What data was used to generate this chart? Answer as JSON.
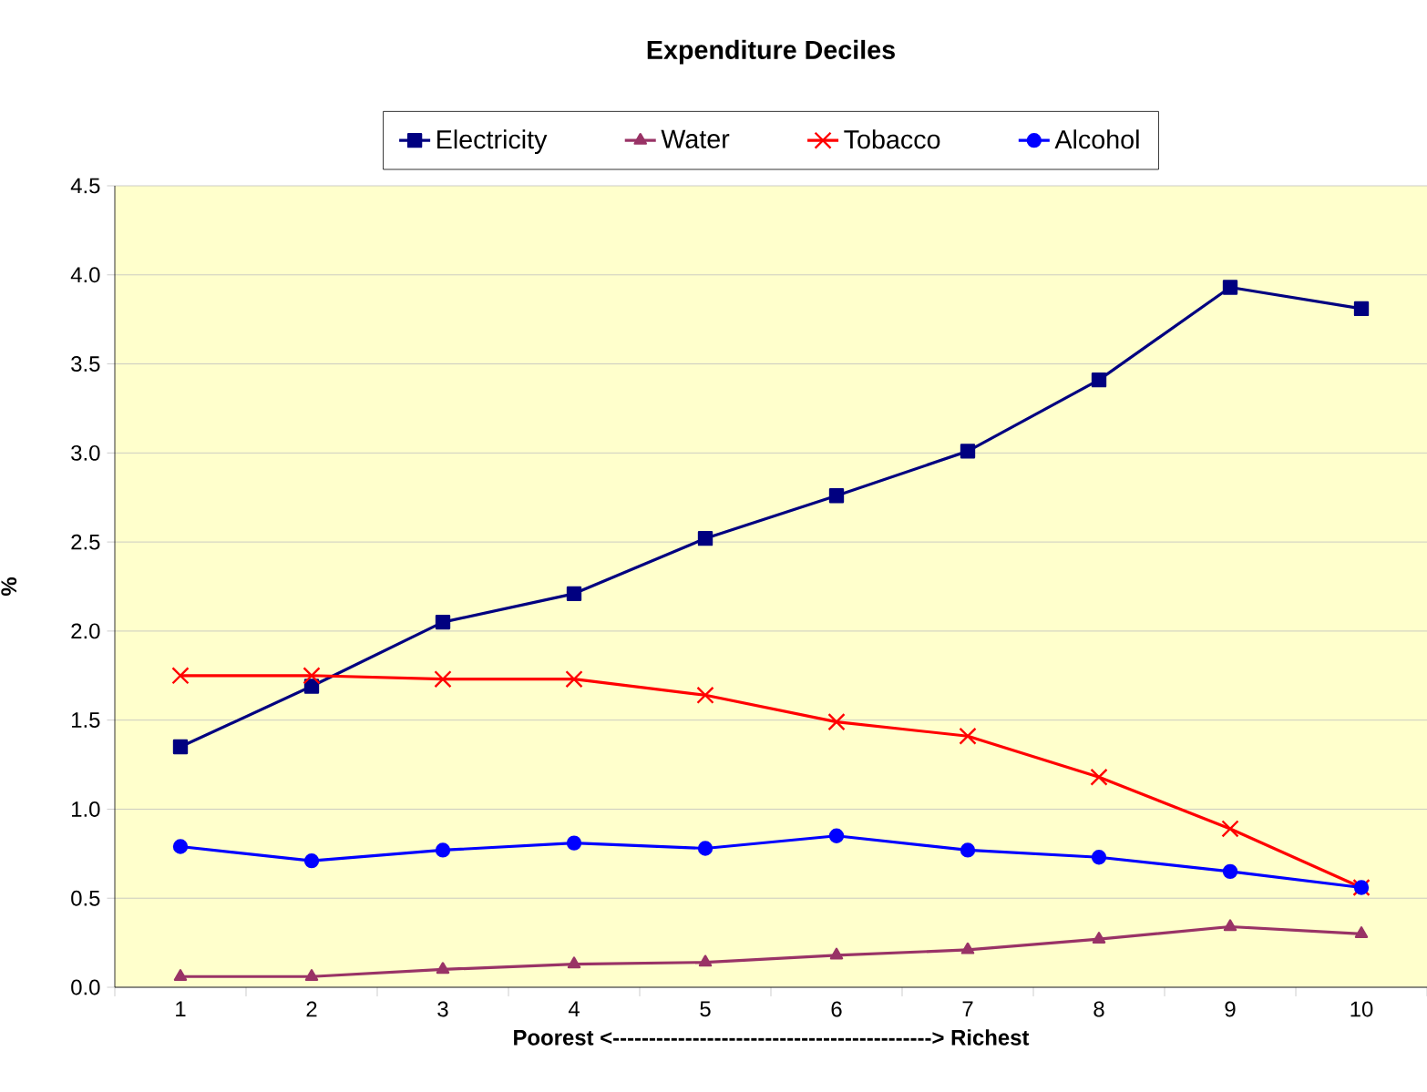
{
  "chart_data": {
    "type": "line",
    "title": "Expenditure Deciles",
    "xlabel": "Poorest <--------------------------------------------> Richest",
    "ylabel": "%",
    "categories": [
      "1",
      "2",
      "3",
      "4",
      "5",
      "6",
      "7",
      "8",
      "9",
      "10"
    ],
    "series": [
      {
        "name": "Electricity",
        "color": "#000080",
        "marker": "square",
        "values": [
          1.35,
          1.69,
          2.05,
          2.21,
          2.52,
          2.76,
          3.01,
          3.41,
          3.93,
          3.81
        ]
      },
      {
        "name": "Water",
        "color": "#993366",
        "marker": "triangle",
        "values": [
          0.06,
          0.06,
          0.1,
          0.13,
          0.14,
          0.18,
          0.21,
          0.27,
          0.34,
          0.3
        ]
      },
      {
        "name": "Tobacco",
        "color": "#ff0000",
        "marker": "cross",
        "values": [
          1.75,
          1.75,
          1.73,
          1.73,
          1.64,
          1.49,
          1.41,
          1.18,
          0.89,
          0.56
        ]
      },
      {
        "name": "Alcohol",
        "color": "#0000ff",
        "marker": "circle",
        "values": [
          0.79,
          0.71,
          0.77,
          0.81,
          0.78,
          0.85,
          0.77,
          0.73,
          0.65,
          0.56
        ]
      }
    ],
    "ylim": [
      0,
      4.5
    ],
    "yticks": [
      {
        "value": 0,
        "label": "0.0"
      },
      0.5,
      {
        "value": 1,
        "label": "1.0"
      },
      1.5,
      {
        "value": 2,
        "label": "2.0"
      },
      2.5,
      {
        "value": 3,
        "label": "3.0"
      },
      3.5,
      {
        "value": 4,
        "label": "4.0"
      },
      4.5
    ],
    "grid": "y",
    "legend": "top"
  }
}
